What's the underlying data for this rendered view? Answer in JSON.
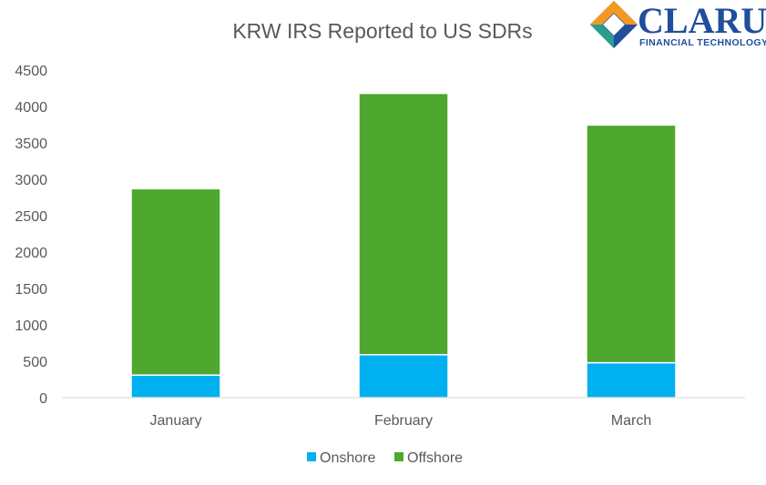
{
  "chart_data": {
    "type": "bar",
    "stacked": true,
    "title": "KRW IRS Reported to US SDRs",
    "categories": [
      "January",
      "February",
      "March"
    ],
    "series": [
      {
        "name": "Onshore",
        "color": "#00b0f0",
        "values": [
          310,
          590,
          480
        ]
      },
      {
        "name": "Offshore",
        "color": "#4ea72e",
        "values": [
          2560,
          3590,
          3265
        ]
      }
    ],
    "ylim": [
      0,
      4500
    ],
    "yticks": [
      "0",
      "500",
      "1000",
      "1500",
      "2000",
      "2500",
      "3000",
      "3500",
      "4000",
      "4500"
    ],
    "grid": false,
    "legend": "bottom"
  },
  "logo": {
    "name": "CLARUS",
    "tagline": "FINANCIAL TECHNOLOGY",
    "icon": "diamond-logo-icon",
    "colors": [
      "#f39a1e",
      "#1f4e9c",
      "#2a9d8f"
    ]
  }
}
